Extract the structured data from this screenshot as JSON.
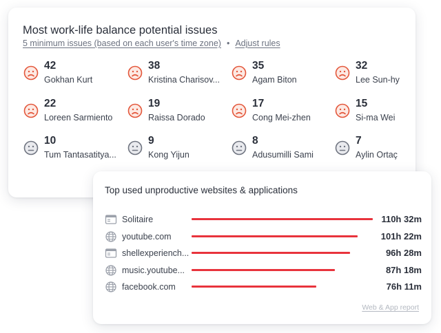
{
  "work_life": {
    "title": "Most work-life balance potential issues",
    "subtitle_link": "5 minimum issues (based on each user's time zone)",
    "separator": "•",
    "adjust_link": "Adjust rules",
    "issue_color": "#e3563a",
    "neutral_color": "#6f7480",
    "users": [
      {
        "count": "42",
        "name": "Gokhan Kurt",
        "mood": "sad"
      },
      {
        "count": "38",
        "name": "Kristina Charisov...",
        "mood": "sad"
      },
      {
        "count": "35",
        "name": "Agam Biton",
        "mood": "sad"
      },
      {
        "count": "32",
        "name": "Lee Sun-hy",
        "mood": "sad"
      },
      {
        "count": "22",
        "name": "Loreen Sarmiento",
        "mood": "sad"
      },
      {
        "count": "19",
        "name": "Raissa Dorado",
        "mood": "sad"
      },
      {
        "count": "17",
        "name": "Cong Mei-zhen",
        "mood": "sad"
      },
      {
        "count": "15",
        "name": "Si-ma Wei",
        "mood": "sad"
      },
      {
        "count": "10",
        "name": "Tum Tantasatitya...",
        "mood": "neutral"
      },
      {
        "count": "9",
        "name": "Kong Yijun",
        "mood": "neutral"
      },
      {
        "count": "8",
        "name": "Adusumilli Sami",
        "mood": "neutral"
      },
      {
        "count": "7",
        "name": "Aylin Ortaç",
        "mood": "neutral"
      }
    ]
  },
  "unproductive": {
    "title": "Top used unproductive websites & applications",
    "bar_color": "#e8333c",
    "items": [
      {
        "label": "Solitaire",
        "icon": "app-window-icon",
        "time": "110h 32m",
        "minutes": 6632
      },
      {
        "label": "youtube.com",
        "icon": "globe-icon",
        "time": "101h 22m",
        "minutes": 6082
      },
      {
        "label": "shellexperiench...",
        "icon": "app-window-icon",
        "time": "96h 28m",
        "minutes": 5788
      },
      {
        "label": "music.youtube...",
        "icon": "globe-icon",
        "time": "87h 18m",
        "minutes": 5238
      },
      {
        "label": "facebook.com",
        "icon": "globe-icon",
        "time": "76h 11m",
        "minutes": 4571
      }
    ],
    "report_link": "Web & App report"
  }
}
